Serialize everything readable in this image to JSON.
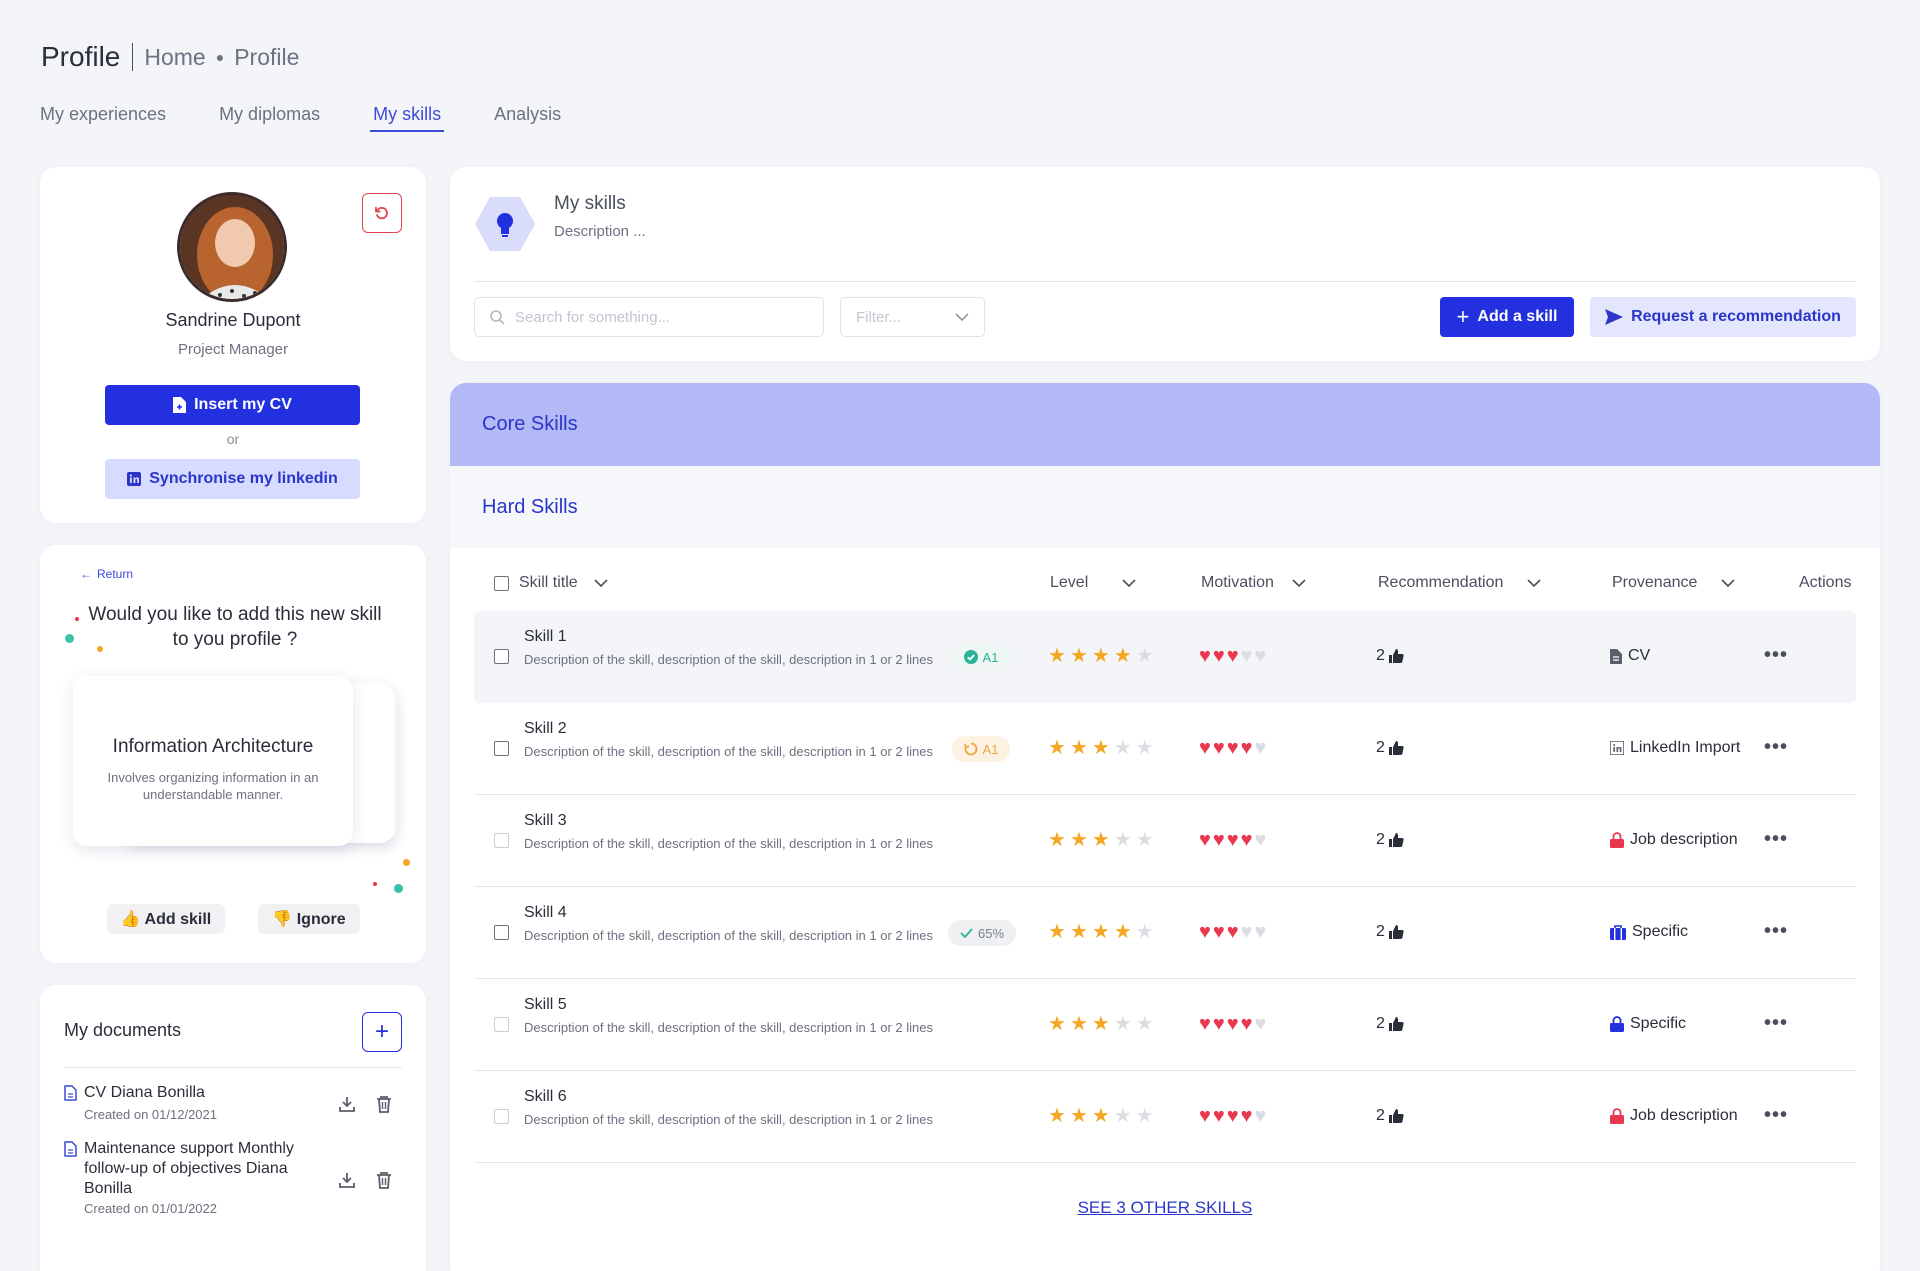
{
  "header": {
    "title": "Profile",
    "breadcrumb": [
      "Home",
      "Profile"
    ]
  },
  "tabs": [
    {
      "label": "My experiences",
      "active": false
    },
    {
      "label": "My diplomas",
      "active": false
    },
    {
      "label": "My skills",
      "active": true
    },
    {
      "label": "Analysis",
      "active": false
    }
  ],
  "profile": {
    "name": "Sandrine Dupont",
    "role": "Project Manager",
    "insert_cv_label": "Insert my CV",
    "or_label": "or",
    "sync_linkedin_label": "Synchronise my linkedin"
  },
  "suggestion": {
    "return_label": "Return",
    "question": "Would you like to add this new skill to you profile ?",
    "skill_title": "Information Architecture",
    "skill_desc": "Involves organizing information in an understandable manner.",
    "add_label": "👍 Add skill",
    "ignore_label": "👎 Ignore"
  },
  "documents": {
    "title": "My documents",
    "items": [
      {
        "name": "CV Diana Bonilla",
        "created": "Created on 01/12/2021"
      },
      {
        "name": "Maintenance support Monthly follow-up of objectives Diana Bonilla",
        "created": "Created on 01/01/2022"
      }
    ]
  },
  "skills_header": {
    "title": "My skills",
    "description": "Description ...",
    "search_placeholder": "Search for something...",
    "filter_placeholder": "Filter...",
    "add_skill_label": "Add a skill",
    "request_label": "Request a recommendation"
  },
  "sections": {
    "core": "Core Skills",
    "hard": "Hard Skills"
  },
  "table": {
    "columns": {
      "title": "Skill title",
      "level": "Level",
      "motivation": "Motivation",
      "recommendation": "Recommendation",
      "provenance": "Provenance",
      "actions": "Actions"
    },
    "rows": [
      {
        "title": "Skill 1",
        "desc": "Description of the skill, description of the skill, description in 1 or 2 lines",
        "badge": "A1",
        "badge_type": "ok",
        "level": 4,
        "motivation": 3,
        "recs": "2",
        "provenance": "CV",
        "prov_icon": "file-icon",
        "checkbox_active": true
      },
      {
        "title": "Skill 2",
        "desc": "Description of the skill, description of the skill, description in 1 or 2 lines",
        "badge": "A1",
        "badge_type": "wait",
        "level": 3,
        "motivation": 4,
        "recs": "2",
        "provenance": "LinkedIn Import",
        "prov_icon": "linkedin-icon",
        "checkbox_active": true
      },
      {
        "title": "Skill 3",
        "desc": "Description of the skill, description of the skill, description in 1 or 2 lines",
        "badge": "",
        "badge_type": "",
        "level": 3,
        "motivation": 4,
        "recs": "2",
        "provenance": "Job description",
        "prov_icon": "lock-icon",
        "checkbox_active": false
      },
      {
        "title": "Skill 4",
        "desc": "Description of the skill, description of the skill, description in 1 or 2 lines",
        "badge": "65%",
        "badge_type": "pct",
        "level": 4,
        "motivation": 3,
        "recs": "2",
        "provenance": "Specific",
        "prov_icon": "briefcase-icon",
        "checkbox_active": true
      },
      {
        "title": "Skill 5",
        "desc": "Description of the skill, description of the skill, description in 1 or 2 lines",
        "badge": "",
        "badge_type": "",
        "level": 3,
        "motivation": 4,
        "recs": "2",
        "provenance": "Specific",
        "prov_icon": "lock-blue-icon",
        "checkbox_active": false
      },
      {
        "title": "Skill 6",
        "desc": "Description of the skill, description of the skill, description in 1 or 2 lines",
        "badge": "",
        "badge_type": "",
        "level": 3,
        "motivation": 4,
        "recs": "2",
        "provenance": "Job description",
        "prov_icon": "lock-icon",
        "checkbox_active": false
      }
    ],
    "see_more": "SEE 3 OTHER SKILLS"
  },
  "colors": {
    "accent": "#2330e0",
    "star": "#f5a623",
    "heart": "#e8384f",
    "core_band": "#b3b9f7"
  }
}
